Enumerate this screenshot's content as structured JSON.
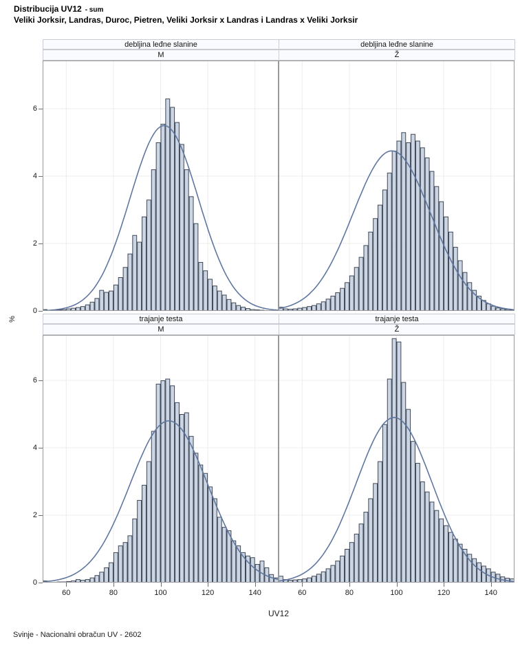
{
  "title": {
    "line1_main": "Distribucija UV12",
    "line1_suffix": "- sum",
    "line2": "Veliki Jorksir, Landras, Duroc, Pietren, Veliki Jorksir x Landras i Landras x Veliki Jorksir"
  },
  "footer": "Svinje - Nacionalni obračun UV - 2602",
  "axes": {
    "ylabel": "%",
    "xlabel": "UV12",
    "yticks": [
      0,
      2,
      4,
      6
    ],
    "xticks": [
      60,
      80,
      100,
      120,
      140
    ],
    "xmin": 50,
    "xmax": 150,
    "grid": true
  },
  "colors": {
    "bar_fill": "#ccd5e3",
    "bar_stroke": "#3d4654",
    "curve": "#5f76a0",
    "grid": "#ececec",
    "panel_border": "#97999d",
    "header_bg": "#fafbfe",
    "header_border": "#c9ccd2",
    "tick": "#6e6e6e"
  },
  "chart_data": {
    "type": "bar",
    "subtype": "histogram-lattice-2x2-with-normal-curve",
    "bin_start": 50,
    "bin_width": 2,
    "ylim": [
      0,
      7.4
    ],
    "xlim": [
      50,
      150
    ],
    "panels": [
      {
        "row_label": "debljina leđne slanine",
        "col_label": "M",
        "values": [
          0.05,
          0.03,
          0.03,
          0.04,
          0.05,
          0.07,
          0.09,
          0.11,
          0.14,
          0.19,
          0.27,
          0.38,
          0.62,
          0.56,
          0.6,
          0.78,
          1.0,
          1.3,
          1.7,
          2.25,
          2.05,
          2.8,
          3.3,
          4.2,
          5.0,
          5.55,
          6.3,
          6.05,
          5.6,
          4.95,
          4.2,
          3.4,
          2.6,
          1.45,
          1.2,
          0.95,
          0.75,
          0.6,
          0.48,
          0.35,
          0.25,
          0.17,
          0.12,
          0.08,
          0.05,
          0.04,
          0.03,
          0.02,
          0.01,
          0.01
        ],
        "normal_curve": {
          "mean": 101.5,
          "sd": 14.5,
          "peak": 5.5
        }
      },
      {
        "row_label": "debljina leđne slanine",
        "col_label": "Ž",
        "values": [
          0.12,
          0.07,
          0.06,
          0.07,
          0.09,
          0.11,
          0.14,
          0.17,
          0.22,
          0.28,
          0.36,
          0.45,
          0.55,
          0.68,
          0.85,
          1.05,
          1.3,
          1.6,
          1.95,
          2.35,
          2.75,
          3.15,
          3.6,
          4.1,
          4.75,
          5.05,
          5.3,
          5.0,
          5.25,
          5.05,
          4.85,
          4.55,
          4.15,
          3.7,
          3.25,
          2.8,
          2.35,
          1.9,
          1.5,
          1.15,
          0.85,
          0.62,
          0.45,
          0.32,
          0.22,
          0.15,
          0.1,
          0.07,
          0.05,
          0.03
        ],
        "normal_curve": {
          "mean": 98,
          "sd": 16.5,
          "peak": 4.75
        }
      },
      {
        "row_label": "trajanje testa",
        "col_label": "M",
        "values": [
          0.06,
          0.02,
          0.02,
          0.03,
          0.03,
          0.04,
          0.06,
          0.1,
          0.08,
          0.1,
          0.15,
          0.22,
          0.32,
          0.45,
          0.6,
          0.9,
          1.1,
          1.2,
          1.4,
          1.9,
          2.45,
          2.9,
          3.6,
          4.5,
          5.9,
          6.0,
          6.05,
          5.85,
          5.35,
          5.0,
          5.05,
          4.35,
          3.85,
          3.5,
          3.25,
          2.85,
          2.5,
          1.95,
          1.65,
          1.55,
          1.25,
          1.1,
          0.9,
          0.8,
          0.75,
          0.55,
          0.65,
          0.45,
          0.25,
          0.15
        ],
        "normal_curve": {
          "mean": 103.5,
          "sd": 16.5,
          "peak": 4.8
        }
      },
      {
        "row_label": "trajanje testa",
        "col_label": "Ž",
        "values": [
          0.2,
          0.1,
          0.08,
          0.09,
          0.1,
          0.12,
          0.15,
          0.2,
          0.26,
          0.33,
          0.42,
          0.52,
          0.65,
          0.8,
          1.0,
          1.2,
          1.45,
          1.75,
          2.1,
          2.5,
          2.95,
          3.6,
          4.7,
          6.05,
          7.25,
          7.15,
          5.95,
          5.15,
          4.2,
          3.55,
          3.0,
          2.7,
          2.4,
          2.15,
          1.9,
          1.7,
          1.5,
          1.3,
          1.15,
          1.0,
          0.85,
          0.72,
          0.6,
          0.5,
          0.42,
          0.32,
          0.26,
          0.18,
          0.14,
          0.12
        ],
        "normal_curve": {
          "mean": 99,
          "sd": 16.0,
          "peak": 4.9
        }
      }
    ]
  }
}
